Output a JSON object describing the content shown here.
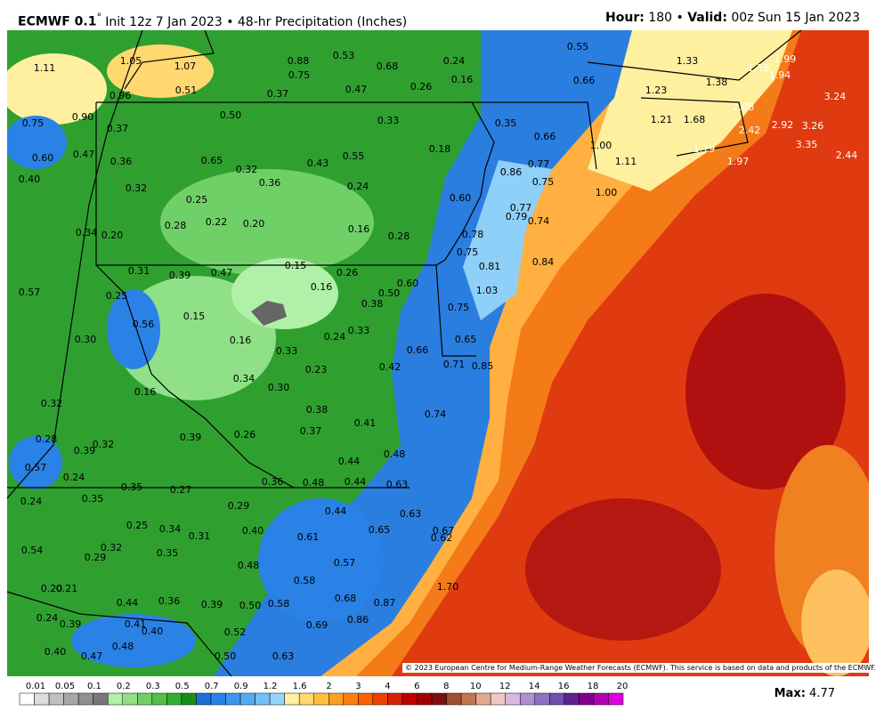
{
  "header": {
    "model": "ECMWF 0.1",
    "degree": "°",
    "run": "Init 12z 7 Jan 2023 • 48-hr Precipitation (Inches)",
    "hour_label": "Hour:",
    "hour": "180",
    "separator": "•",
    "valid_label": "Valid:",
    "valid": "00z Sun 15 Jan 2023"
  },
  "map": {
    "labels": [
      "1.11",
      "1.05",
      "1.07",
      "0.88",
      "0.53",
      "0.68",
      "0.24",
      "0.55",
      "1.33",
      "1.58",
      "1.99",
      "0.75",
      "0.16",
      "0.66",
      "1.38",
      "1.94",
      "0.96",
      "0.51",
      "0.37",
      "0.47",
      "0.26",
      "1.23",
      "3.24",
      "0.75",
      "0.90",
      "0.37",
      "0.50",
      "0.33",
      "0.35",
      "1.21",
      "1.68",
      "2.08",
      "2.92",
      "3.26",
      "2.42",
      "0.66",
      "3.35",
      "0.60",
      "0.47",
      "0.36",
      "0.65",
      "0.32",
      "0.43",
      "0.55",
      "0.18",
      "1.00",
      "1.79",
      "2.44",
      "1.97",
      "0.77",
      "1.11",
      "0.86",
      "0.40",
      "0.36",
      "0.24",
      "0.75",
      "1.00",
      "0.32",
      "0.25",
      "0.60",
      "0.77",
      "0.79",
      "0.74",
      "0.34",
      "0.20",
      "0.28",
      "0.22",
      "0.20",
      "0.16",
      "0.28",
      "0.78",
      "0.75",
      "0.84",
      "0.81",
      "0.31",
      "0.39",
      "0.47",
      "0.15",
      "0.26",
      "0.57",
      "0.25",
      "0.16",
      "0.60",
      "0.50",
      "1.03",
      "0.38",
      "0.75",
      "0.56",
      "0.15",
      "0.33",
      "0.30",
      "0.16",
      "0.24",
      "0.65",
      "0.66",
      "0.33",
      "0.23",
      "0.42",
      "0.71",
      "0.85",
      "0.34",
      "0.30",
      "0.16",
      "0.32",
      "0.38",
      "0.74",
      "0.41",
      "0.37",
      "0.28",
      "0.39",
      "0.26",
      "0.39",
      "0.32",
      "0.48",
      "0.44",
      "0.57",
      "0.24",
      "0.36",
      "0.48",
      "0.44",
      "0.63",
      "0.35",
      "0.27",
      "0.24",
      "0.35",
      "0.29",
      "0.44",
      "0.63",
      "0.25",
      "0.34",
      "0.31",
      "0.40",
      "0.65",
      "0.67",
      "0.61",
      "0.62",
      "0.54",
      "0.32",
      "0.35",
      "0.29",
      "0.48",
      "0.57",
      "0.58",
      "0.20",
      "0.21",
      "1.70",
      "0.68",
      "0.87",
      "0.44",
      "0.36",
      "0.39",
      "0.50",
      "0.58",
      "0.24",
      "0.39",
      "0.86",
      "0.41",
      "0.40",
      "0.69",
      "0.52",
      "0.48",
      "0.40",
      "0.47",
      "0.50",
      "0.63"
    ]
  },
  "legend": {
    "levels": [
      "0.01",
      "0.05",
      "0.1",
      "0.2",
      "0.3",
      "0.5",
      "0.7",
      "0.9",
      "1.2",
      "1.6",
      "2",
      "3",
      "4",
      "6",
      "8",
      "10",
      "12",
      "14",
      "16",
      "18",
      "20"
    ]
  },
  "footer": {
    "copyright": "© 2023 European Centre for Medium-Range Weather Forecasts (ECMWF). This service is based on data and products of the ECMWF.",
    "max_label": "Max:",
    "max_value": "4.77"
  }
}
